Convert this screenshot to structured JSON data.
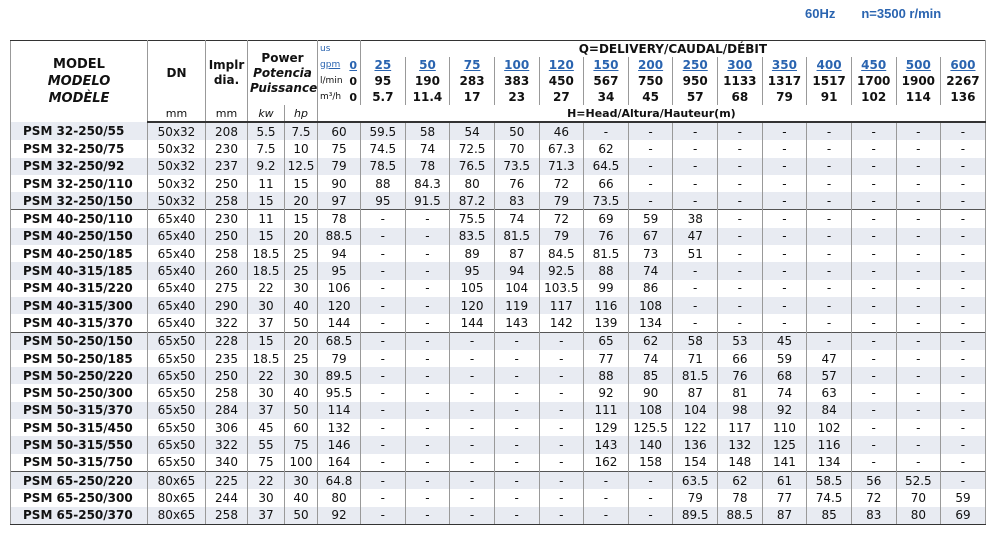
{
  "header": {
    "frequency": "60Hz",
    "speed": "n=3500 r/min"
  },
  "table": {
    "model": [
      "MODEL",
      "MODELO",
      "MODÈLE"
    ],
    "dn": "DN",
    "dn_unit": "mm",
    "impeller": "Implr dia.",
    "impeller_unit": "mm",
    "power": [
      "Power",
      "Potencia",
      "Puissance"
    ],
    "power_units": [
      "kw",
      "hp"
    ],
    "flow_title": "Q=DELIVERY/CAUDAL/DÉBIT",
    "flow_rows": [
      {
        "prefix": "us",
        "label": "gpm",
        "values": [
          0,
          25,
          50,
          75,
          100,
          120,
          150,
          200,
          250,
          300,
          350,
          400,
          450,
          500,
          600
        ]
      },
      {
        "label": "l/min",
        "values": [
          0,
          95,
          190,
          283,
          383,
          450,
          567,
          750,
          950,
          1133,
          1317,
          1517,
          1700,
          1900,
          2267
        ]
      },
      {
        "label": "m³/h",
        "values": [
          0,
          5.7,
          11.4,
          17,
          23,
          27,
          34,
          45,
          57,
          68,
          79,
          91,
          102,
          114,
          136
        ]
      }
    ],
    "head_title": "H=Head/Altura/Hauteur(m)",
    "rows": [
      [
        "PSM 32-250/55",
        "50x32",
        208,
        5.5,
        7.5,
        60,
        59.5,
        58,
        54,
        50,
        46,
        "-",
        "-",
        "-",
        "-",
        "-",
        "-",
        "-",
        "-",
        "-"
      ],
      [
        "PSM 32-250/75",
        "50x32",
        230,
        7.5,
        10,
        75,
        74.5,
        74,
        72.5,
        70,
        67.3,
        62,
        "-",
        "-",
        "-",
        "-",
        "-",
        "-",
        "-",
        "-"
      ],
      [
        "PSM 32-250/92",
        "50x32",
        237,
        9.2,
        12.5,
        79,
        78.5,
        78,
        76.5,
        73.5,
        71.3,
        64.5,
        "-",
        "-",
        "-",
        "-",
        "-",
        "-",
        "-",
        "-"
      ],
      [
        "PSM 32-250/110",
        "50x32",
        250,
        11,
        15,
        90,
        88,
        84.3,
        80,
        76,
        72,
        66,
        "-",
        "-",
        "-",
        "-",
        "-",
        "-",
        "-",
        "-"
      ],
      [
        "PSM 32-250/150",
        "50x32",
        258,
        15,
        20,
        97,
        95,
        91.5,
        87.2,
        83,
        79,
        73.5,
        "-",
        "-",
        "-",
        "-",
        "-",
        "-",
        "-",
        "-"
      ],
      [
        "PSM 40-250/110",
        "65x40",
        230,
        11,
        15,
        78,
        "-",
        "-",
        75.5,
        74,
        72,
        69,
        59,
        38,
        "-",
        "-",
        "-",
        "-",
        "-",
        "-"
      ],
      [
        "PSM 40-250/150",
        "65x40",
        250,
        15,
        20,
        88.5,
        "-",
        "-",
        83.5,
        81.5,
        79,
        76,
        67,
        47,
        "-",
        "-",
        "-",
        "-",
        "-",
        "-"
      ],
      [
        "PSM 40-250/185",
        "65x40",
        258,
        18.5,
        25,
        94,
        "-",
        "-",
        89,
        87,
        84.5,
        81.5,
        73,
        51,
        "-",
        "-",
        "-",
        "-",
        "-",
        "-"
      ],
      [
        "PSM 40-315/185",
        "65x40",
        260,
        18.5,
        25,
        95,
        "-",
        "-",
        95,
        94,
        92.5,
        88,
        74,
        "-",
        "-",
        "-",
        "-",
        "-",
        "-",
        "-"
      ],
      [
        "PSM 40-315/220",
        "65x40",
        275,
        22,
        30,
        106,
        "-",
        "-",
        105,
        104,
        103.5,
        99,
        86,
        "-",
        "-",
        "-",
        "-",
        "-",
        "-",
        "-"
      ],
      [
        "PSM 40-315/300",
        "65x40",
        290,
        30,
        40,
        120,
        "-",
        "-",
        120,
        119,
        117,
        116,
        108,
        "-",
        "-",
        "-",
        "-",
        "-",
        "-",
        "-"
      ],
      [
        "PSM 40-315/370",
        "65x40",
        322,
        37,
        50,
        144,
        "-",
        "-",
        144,
        143,
        142,
        139,
        134,
        "-",
        "-",
        "-",
        "-",
        "-",
        "-",
        "-"
      ],
      [
        "PSM 50-250/150",
        "65x50",
        228,
        15,
        20,
        68.5,
        "-",
        "-",
        "-",
        "-",
        "-",
        65,
        62,
        58,
        53,
        45,
        "-",
        "-",
        "-",
        "-"
      ],
      [
        "PSM 50-250/185",
        "65x50",
        235,
        18.5,
        25,
        79,
        "-",
        "-",
        "-",
        "-",
        "-",
        77,
        74,
        71,
        66,
        59,
        47,
        "-",
        "-",
        "-"
      ],
      [
        "PSM 50-250/220",
        "65x50",
        250,
        22,
        30,
        89.5,
        "-",
        "-",
        "-",
        "-",
        "-",
        88,
        85,
        81.5,
        76,
        68,
        57,
        "-",
        "-",
        "-"
      ],
      [
        "PSM 50-250/300",
        "65x50",
        258,
        30,
        40,
        95.5,
        "-",
        "-",
        "-",
        "-",
        "-",
        92,
        90,
        87,
        81,
        74,
        63,
        "-",
        "-",
        "-"
      ],
      [
        "PSM 50-315/370",
        "65x50",
        284,
        37,
        50,
        114,
        "-",
        "-",
        "-",
        "-",
        "-",
        111,
        108,
        104,
        98,
        92,
        84,
        "-",
        "-",
        "-"
      ],
      [
        "PSM 50-315/450",
        "65x50",
        306,
        45,
        60,
        132,
        "-",
        "-",
        "-",
        "-",
        "-",
        129,
        125.5,
        122,
        117,
        110,
        102,
        "-",
        "-",
        "-"
      ],
      [
        "PSM 50-315/550",
        "65x50",
        322,
        55,
        75,
        146,
        "-",
        "-",
        "-",
        "-",
        "-",
        143,
        140,
        136,
        132,
        125,
        116,
        "-",
        "-",
        "-"
      ],
      [
        "PSM 50-315/750",
        "65x50",
        340,
        75,
        100,
        164,
        "-",
        "-",
        "-",
        "-",
        "-",
        162,
        158,
        154,
        148,
        141,
        134,
        "-",
        "-",
        "-"
      ],
      [
        "PSM 65-250/220",
        "80x65",
        225,
        22,
        30,
        64.8,
        "-",
        "-",
        "-",
        "-",
        "-",
        "-",
        "-",
        63.5,
        62,
        61,
        58.5,
        56,
        52.5,
        "-"
      ],
      [
        "PSM 65-250/300",
        "80x65",
        244,
        30,
        40,
        80,
        "-",
        "-",
        "-",
        "-",
        "-",
        "-",
        "-",
        79,
        78,
        77,
        74.5,
        72,
        70,
        59
      ],
      [
        "PSM 65-250/370",
        "80x65",
        258,
        37,
        50,
        92,
        "-",
        "-",
        "-",
        "-",
        "-",
        "-",
        "-",
        89.5,
        88.5,
        87,
        85,
        83,
        80,
        69
      ]
    ]
  }
}
